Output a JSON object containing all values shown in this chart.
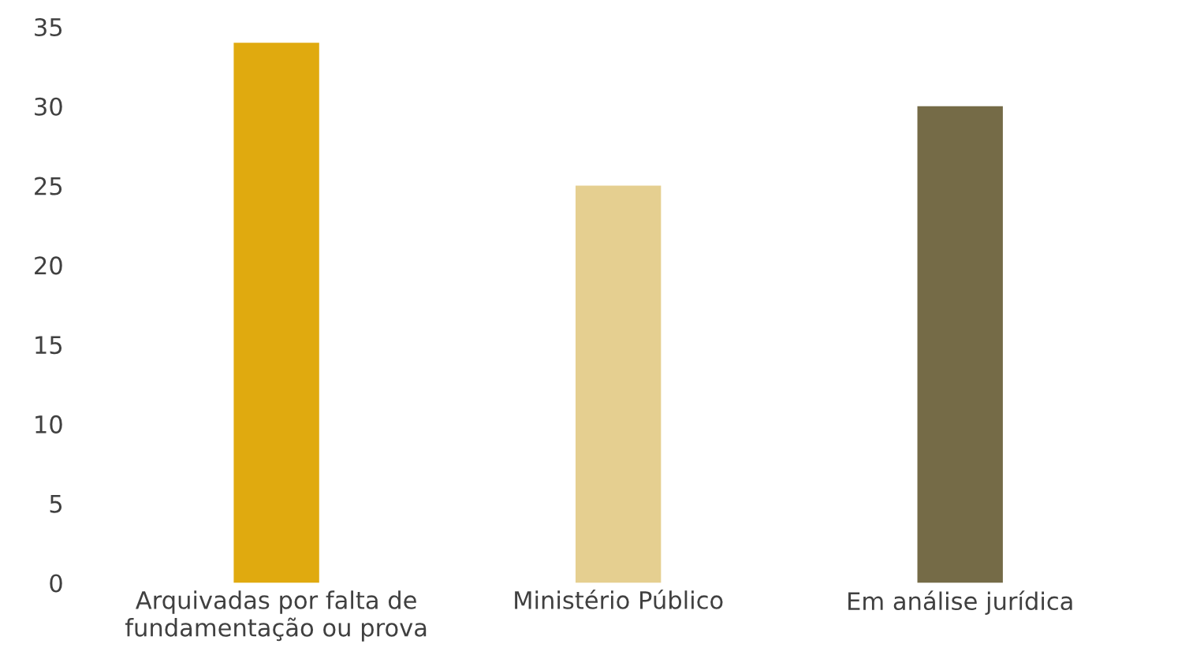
{
  "chart_data": {
    "type": "bar",
    "categories": [
      "Arquivadas por falta de\nfundamentação ou prova",
      "Ministério Público",
      "Em análise jurídica"
    ],
    "values": [
      34,
      25,
      30
    ],
    "colors": [
      "#e0aa0f",
      "#e5cf90",
      "#756b47"
    ],
    "ylim": [
      0,
      35
    ],
    "yticks": [
      0,
      5,
      10,
      15,
      20,
      25,
      30,
      35
    ],
    "grid": false
  }
}
